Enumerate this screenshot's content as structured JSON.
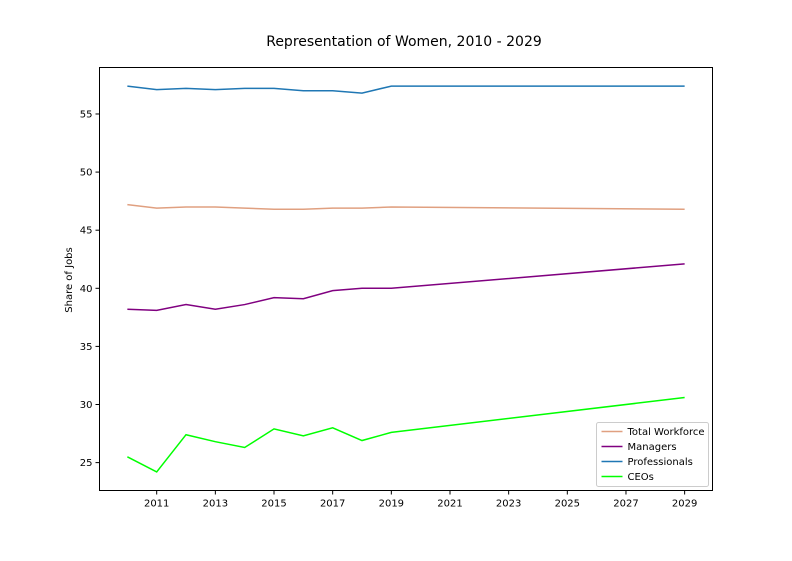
{
  "chart_data": {
    "type": "line",
    "title": "Representation of Women, 2010 - 2029",
    "xlabel": "",
    "ylabel": "Share of Jobs",
    "x": [
      2010,
      2011,
      2012,
      2013,
      2014,
      2015,
      2016,
      2017,
      2018,
      2019,
      2029
    ],
    "xlim": [
      2009.05,
      2029.95
    ],
    "ylim": [
      22.6,
      59.0
    ],
    "xticks": [
      "2011",
      "2013",
      "2015",
      "2017",
      "2019",
      "2021",
      "2023",
      "2025",
      "2027",
      "2029"
    ],
    "yticks": [
      "25",
      "30",
      "35",
      "40",
      "45",
      "50",
      "55"
    ],
    "grid": false,
    "legend_position": "lower-right",
    "series": [
      {
        "name": "Total Workforce",
        "color": "#e0a080",
        "values": [
          47.2,
          46.9,
          47.0,
          47.0,
          46.9,
          46.8,
          46.8,
          46.9,
          46.9,
          47.0,
          46.8
        ]
      },
      {
        "name": "Managers",
        "color": "#800080",
        "values": [
          38.2,
          38.1,
          38.6,
          38.2,
          38.6,
          39.2,
          39.1,
          39.8,
          40.0,
          40.0,
          42.1
        ]
      },
      {
        "name": "Professionals",
        "color": "#1f77b4",
        "values": [
          57.4,
          57.1,
          57.2,
          57.1,
          57.2,
          57.2,
          57.0,
          57.0,
          56.8,
          57.4,
          57.4
        ]
      },
      {
        "name": "CEOs",
        "color": "#00ff00",
        "values": [
          25.5,
          24.2,
          27.4,
          26.8,
          26.3,
          27.9,
          27.3,
          28.0,
          26.9,
          27.6,
          30.6
        ]
      }
    ]
  }
}
